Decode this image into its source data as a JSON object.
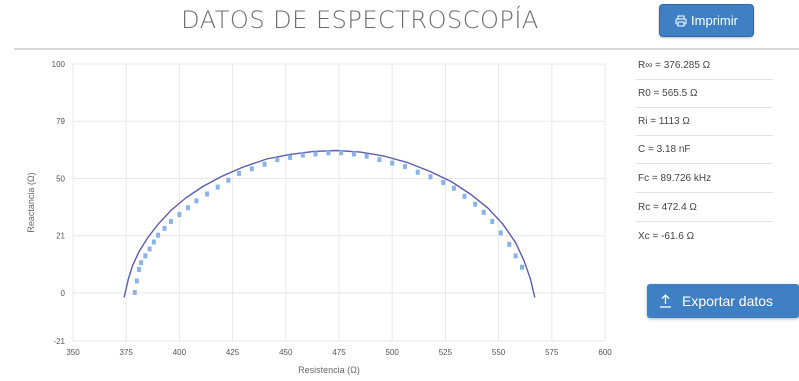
{
  "header": {
    "title": "DATOS DE ESPECTROSCOPÍA",
    "print_label": "Imprimir"
  },
  "parameters": [
    "R∞ = 376.285 Ω",
    "R0 = 565.5 Ω",
    "Ri = 1113 Ω",
    "C = 3.18 nF",
    "Fc = 89.726 kHz",
    "Rc = 472.4 Ω",
    "Xc = -61.6 Ω"
  ],
  "export_label": "Exportar datos",
  "icons": {
    "print": "print-icon",
    "export": "upload-icon"
  },
  "colors": {
    "accent": "#3f80c5",
    "fit_line": "#5b5bb0",
    "measured": "#8ab4e8"
  },
  "chart_data": {
    "type": "scatter",
    "title": "",
    "xlabel": "Resistencia (Ω)",
    "ylabel": "Reactancia (Ω)",
    "xlim": [
      350,
      600
    ],
    "ylim": [
      -21,
      100
    ],
    "x_ticks": [
      "350",
      "375",
      "400",
      "425",
      "450",
      "475",
      "500",
      "525",
      "550",
      "575",
      "600"
    ],
    "y_ticks": [
      "100",
      "79",
      "50",
      "21",
      "0",
      "-21"
    ],
    "grid": true,
    "legend": "none",
    "series": [
      {
        "kind": "measured",
        "x": [
          379,
          380,
          381,
          382,
          384,
          386,
          388,
          390,
          393,
          396,
          400,
          404,
          408,
          413,
          418,
          423,
          428,
          434,
          440,
          446,
          452,
          458,
          464,
          470,
          476,
          482,
          488,
          494,
          500,
          506,
          512,
          518,
          524,
          529,
          534,
          539,
          543,
          547,
          551,
          555,
          558,
          561
        ],
        "y": [
          0,
          5,
          10,
          13,
          16,
          19,
          22,
          25,
          28,
          31,
          34,
          37,
          40,
          43,
          46,
          49,
          52,
          54,
          56,
          58,
          59,
          60,
          60.5,
          61,
          61,
          60.5,
          59.5,
          58,
          56.5,
          55,
          52.5,
          50.5,
          48,
          45.5,
          42,
          38.5,
          35,
          31,
          26,
          21,
          16,
          11
        ]
      },
      {
        "kind": "fit",
        "x": [
          374,
          376,
          378,
          381,
          385,
          390,
          396,
          403,
          411,
          420,
          430,
          441,
          452,
          463,
          474,
          485,
          496,
          507,
          518,
          528,
          537,
          545,
          552,
          558,
          562,
          565,
          567
        ],
        "y": [
          -2,
          6,
          12,
          18,
          24,
          30,
          36,
          41.5,
          46.5,
          51,
          55,
          58.5,
          60.5,
          61.8,
          62.2,
          61.5,
          59.8,
          57,
          53,
          48.5,
          43,
          37,
          30,
          22,
          14,
          6,
          -2
        ]
      }
    ]
  }
}
